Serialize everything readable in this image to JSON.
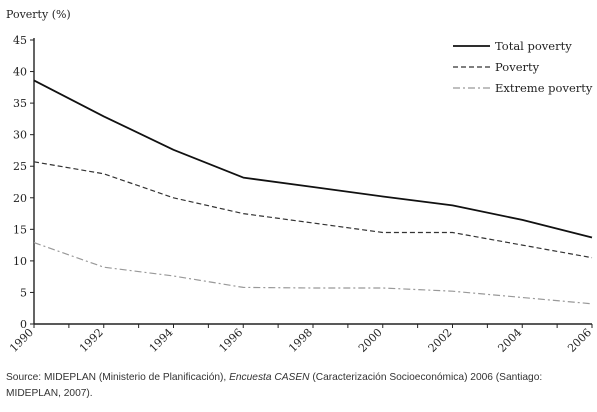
{
  "chart_data": {
    "type": "line",
    "ylabel": "Poverty (%)",
    "xlabel": "",
    "ylim": [
      0,
      45
    ],
    "yticks": [
      0,
      5,
      10,
      15,
      20,
      25,
      30,
      35,
      40,
      45
    ],
    "xlim": [
      1990,
      2006
    ],
    "xticks": [
      "1990",
      "1992",
      "1994",
      "1996",
      "1998",
      "2000",
      "2002",
      "2004",
      "2006"
    ],
    "grid": false,
    "legend_position": "top-right",
    "series": [
      {
        "name": "Total poverty",
        "style": "solid",
        "color": "#111111",
        "points": [
          [
            1990,
            38.6
          ],
          [
            1992,
            32.9
          ],
          [
            1994,
            27.6
          ],
          [
            1996,
            23.2
          ],
          [
            1998,
            21.7
          ],
          [
            2000,
            20.2
          ],
          [
            2002,
            18.8
          ],
          [
            2004,
            16.5
          ],
          [
            2006,
            13.7
          ]
        ]
      },
      {
        "name": "Poverty",
        "style": "dashed",
        "color": "#333333",
        "points": [
          [
            1990,
            25.7
          ],
          [
            1992,
            23.8
          ],
          [
            1994,
            20.0
          ],
          [
            1996,
            17.5
          ],
          [
            1998,
            16.0
          ],
          [
            2000,
            14.5
          ],
          [
            2002,
            14.5
          ],
          [
            2004,
            12.5
          ],
          [
            2006,
            10.5
          ]
        ]
      },
      {
        "name": "Extreme poverty",
        "style": "dash-dot",
        "color": "#999999",
        "points": [
          [
            1990,
            12.9
          ],
          [
            1992,
            9.0
          ],
          [
            1994,
            7.6
          ],
          [
            1996,
            5.8
          ],
          [
            1998,
            5.7
          ],
          [
            2000,
            5.7
          ],
          [
            2002,
            5.2
          ],
          [
            2004,
            4.2
          ],
          [
            2006,
            3.2
          ]
        ]
      }
    ]
  },
  "source": {
    "lead": "Source: MIDEPLAN (Ministerio de Planificación), ",
    "italic": "Encuesta CASEN",
    "tail": " (Caracterización Socioeconómica) 2006 (Santiago: MIDEPLAN, 2007)."
  }
}
